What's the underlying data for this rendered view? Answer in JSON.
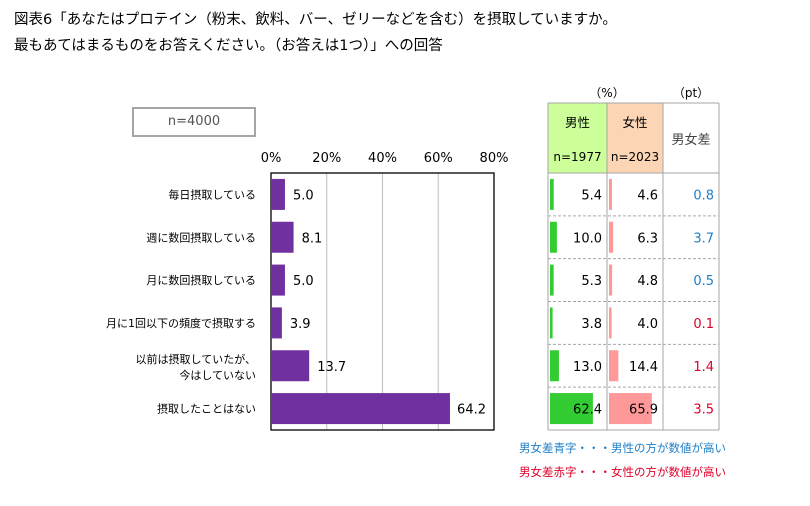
{
  "title_line1": "図表6「あなたはプロテイン（粉末、飲料、バー、ゼリーなどを含む）を摂取していますか。",
  "title_line2": "最もあてはまるものをお答えください。（お答えは1つ）」への回答",
  "sample_label": "n=4000",
  "colors": {
    "total_bar": "#7030a0",
    "male_bar": "#33cc33",
    "female_bar": "#ff9999",
    "male_head": "#ccff99",
    "female_head": "#fcd5b5",
    "diff_blue": "#1f7fc8",
    "diff_red": "#e0002a"
  },
  "chart_data": {
    "type": "bar",
    "orientation": "horizontal",
    "categories": [
      "毎日摂取している",
      "週に数回摂取している",
      "月に数回摂取している",
      "月に1回以下の頻度で摂取する",
      "以前は摂取していたが、今はしていない",
      "摂取したことはない"
    ],
    "values": [
      5.0,
      8.1,
      5.0,
      3.9,
      13.7,
      64.2
    ],
    "xlim": [
      0,
      80
    ],
    "xticks": [
      "0%",
      "20%",
      "40%",
      "60%",
      "80%"
    ],
    "grid": true
  },
  "table": {
    "unit_pct": "（%）",
    "unit_pt": "（pt）",
    "male_header": "男性",
    "male_n": "n=1977",
    "female_header": "女性",
    "female_n": "n=2023",
    "diff_header": "男女差",
    "male": [
      5.4,
      10.0,
      5.3,
      3.8,
      13.0,
      62.4
    ],
    "female": [
      4.6,
      6.3,
      4.8,
      4.0,
      14.4,
      65.9
    ],
    "diff": [
      0.8,
      3.7,
      0.5,
      0.1,
      1.4,
      3.5
    ],
    "diff_color": [
      "blue",
      "blue",
      "blue",
      "red",
      "red",
      "red"
    ]
  },
  "notes": {
    "blue": "男女差青字・・・男性の方が数値が高い",
    "red": "男女差赤字・・・女性の方が数値が高い"
  }
}
